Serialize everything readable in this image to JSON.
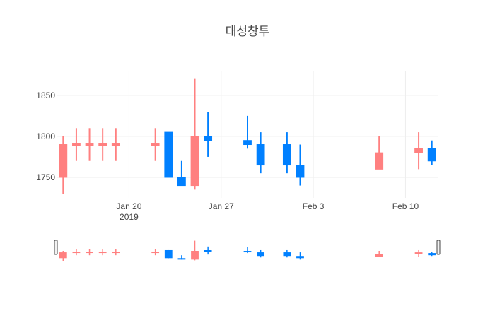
{
  "chart_data": {
    "type": "candlestick",
    "title": "대성창투",
    "xlabel": "",
    "ylabel": "",
    "ylim": [
      1725,
      1880
    ],
    "y_ticks": [
      1750,
      1800,
      1850
    ],
    "x_ticks": [
      {
        "date": "2019-01-20",
        "label": "Jan 20",
        "sublabel": "2019"
      },
      {
        "date": "2019-01-27",
        "label": "Jan 27",
        "sublabel": ""
      },
      {
        "date": "2019-02-03",
        "label": "Feb 3",
        "sublabel": ""
      },
      {
        "date": "2019-02-10",
        "label": "Feb 10",
        "sublabel": ""
      }
    ],
    "xrange": [
      "2019-01-14T12:00",
      "2019-02-12T12:00"
    ],
    "increasing_color": "#ff8080",
    "decreasing_color": "#0080ff",
    "grid": true,
    "rangeslider": true,
    "candles": [
      {
        "date": "2019-01-15",
        "open": 1750,
        "high": 1800,
        "low": 1730,
        "close": 1790
      },
      {
        "date": "2019-01-16",
        "open": 1790,
        "high": 1810,
        "low": 1770,
        "close": 1790
      },
      {
        "date": "2019-01-17",
        "open": 1790,
        "high": 1810,
        "low": 1770,
        "close": 1790
      },
      {
        "date": "2019-01-18",
        "open": 1790,
        "high": 1810,
        "low": 1770,
        "close": 1790
      },
      {
        "date": "2019-01-19",
        "open": 1790,
        "high": 1810,
        "low": 1770,
        "close": 1790
      },
      {
        "date": "2019-01-22",
        "open": 1790,
        "high": 1810,
        "low": 1770,
        "close": 1790
      },
      {
        "date": "2019-01-23",
        "open": 1805,
        "high": 1805,
        "low": 1750,
        "close": 1750
      },
      {
        "date": "2019-01-24",
        "open": 1750,
        "high": 1770,
        "low": 1740,
        "close": 1740
      },
      {
        "date": "2019-01-25",
        "open": 1740,
        "high": 1870,
        "low": 1735,
        "close": 1800
      },
      {
        "date": "2019-01-26",
        "open": 1800,
        "high": 1830,
        "low": 1775,
        "close": 1795
      },
      {
        "date": "2019-01-29",
        "open": 1795,
        "high": 1825,
        "low": 1785,
        "close": 1790
      },
      {
        "date": "2019-01-30",
        "open": 1790,
        "high": 1805,
        "low": 1755,
        "close": 1765
      },
      {
        "date": "2019-02-01",
        "open": 1790,
        "high": 1805,
        "low": 1755,
        "close": 1765
      },
      {
        "date": "2019-02-02",
        "open": 1765,
        "high": 1790,
        "low": 1740,
        "close": 1750
      },
      {
        "date": "2019-02-08",
        "open": 1760,
        "high": 1800,
        "low": 1760,
        "close": 1780
      },
      {
        "date": "2019-02-11",
        "open": 1780,
        "high": 1805,
        "low": 1760,
        "close": 1785
      },
      {
        "date": "2019-02-12",
        "open": 1785,
        "high": 1795,
        "low": 1765,
        "close": 1770
      }
    ]
  }
}
